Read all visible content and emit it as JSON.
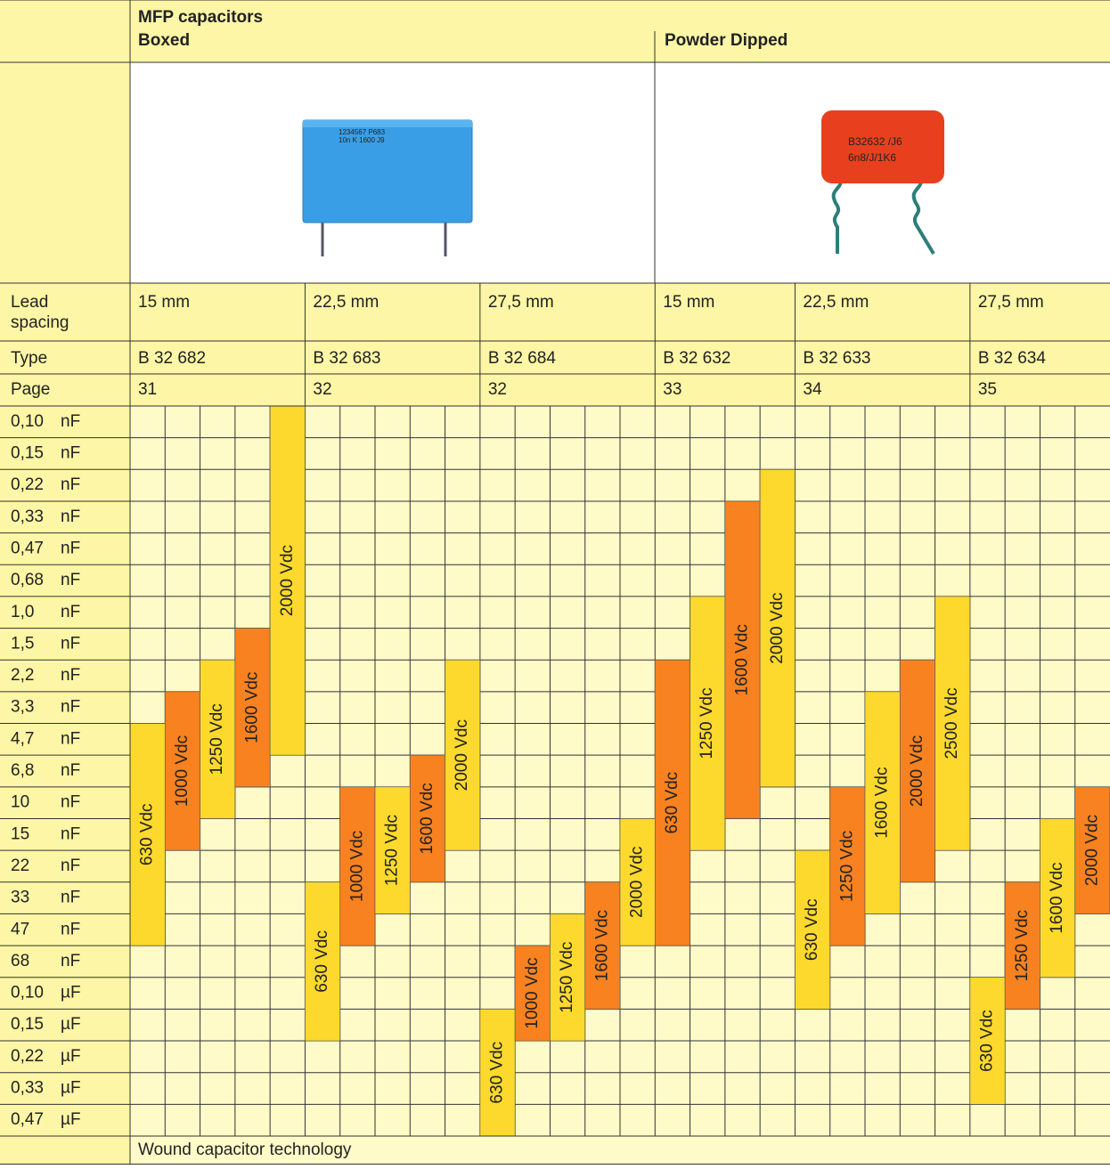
{
  "header": {
    "title": "MFP capacitors",
    "sections": [
      "Boxed",
      "Powder Dipped"
    ]
  },
  "images": {
    "boxed_marking": [
      "1234567 P683",
      "10n K 1600 J9"
    ],
    "dipped_marking": [
      "B32632 /J6",
      "6n8/J/1K6"
    ]
  },
  "row_labels": {
    "lead_spacing": [
      "Lead",
      "spacing"
    ],
    "type": "Type",
    "page": "Page"
  },
  "groups": [
    {
      "lead_spacing": "15 mm",
      "type": "B 32 682",
      "page": "31",
      "bars": [
        "630 Vdc",
        "1000 Vdc",
        "1250 Vdc",
        "1600 Vdc",
        "2000 Vdc"
      ]
    },
    {
      "lead_spacing": "22,5 mm",
      "type": "B 32 683",
      "page": "32",
      "bars": [
        "630 Vdc",
        "1000 Vdc",
        "1250 Vdc",
        "1600 Vdc",
        "2000 Vdc"
      ]
    },
    {
      "lead_spacing": "27,5 mm",
      "type": "B 32 684",
      "page": "32",
      "bars": [
        "630 Vdc",
        "1000 Vdc",
        "1250 Vdc",
        "1600 Vdc",
        "2000 Vdc"
      ]
    },
    {
      "lead_spacing": "15 mm",
      "type": "B 32 632",
      "page": "33",
      "bars": [
        "630 Vdc",
        "1250 Vdc",
        "1600 Vdc",
        "2000 Vdc"
      ]
    },
    {
      "lead_spacing": "22,5 mm",
      "type": "B 32 633",
      "page": "34",
      "bars": [
        "630 Vdc",
        "1250 Vdc",
        "1600 Vdc",
        "2000 Vdc",
        "2500 Vdc"
      ]
    },
    {
      "lead_spacing": "27,5 mm",
      "type": "B 32 634",
      "page": "35",
      "bars": [
        "630 Vdc",
        "1250 Vdc",
        "1600 Vdc",
        "2000 Vdc"
      ]
    }
  ],
  "capacitances": [
    {
      "value": "0,10",
      "unit": "nF"
    },
    {
      "value": "0,15",
      "unit": "nF"
    },
    {
      "value": "0,22",
      "unit": "nF"
    },
    {
      "value": "0,33",
      "unit": "nF"
    },
    {
      "value": "0,47",
      "unit": "nF"
    },
    {
      "value": "0,68",
      "unit": "nF"
    },
    {
      "value": "1,0",
      "unit": "nF"
    },
    {
      "value": "1,5",
      "unit": "nF"
    },
    {
      "value": "2,2",
      "unit": "nF"
    },
    {
      "value": "3,3",
      "unit": "nF"
    },
    {
      "value": "4,7",
      "unit": "nF"
    },
    {
      "value": "6,8",
      "unit": "nF"
    },
    {
      "value": "10",
      "unit": "nF"
    },
    {
      "value": "15",
      "unit": "nF"
    },
    {
      "value": "22",
      "unit": "nF"
    },
    {
      "value": "33",
      "unit": "nF"
    },
    {
      "value": "47",
      "unit": "nF"
    },
    {
      "value": "68",
      "unit": "nF"
    },
    {
      "value": "0,10",
      "unit": "µF"
    },
    {
      "value": "0,15",
      "unit": "µF"
    },
    {
      "value": "0,22",
      "unit": "µF"
    },
    {
      "value": "0,33",
      "unit": "µF"
    },
    {
      "value": "0,47",
      "unit": "µF"
    }
  ],
  "footer": "Wound capacitor technology"
}
